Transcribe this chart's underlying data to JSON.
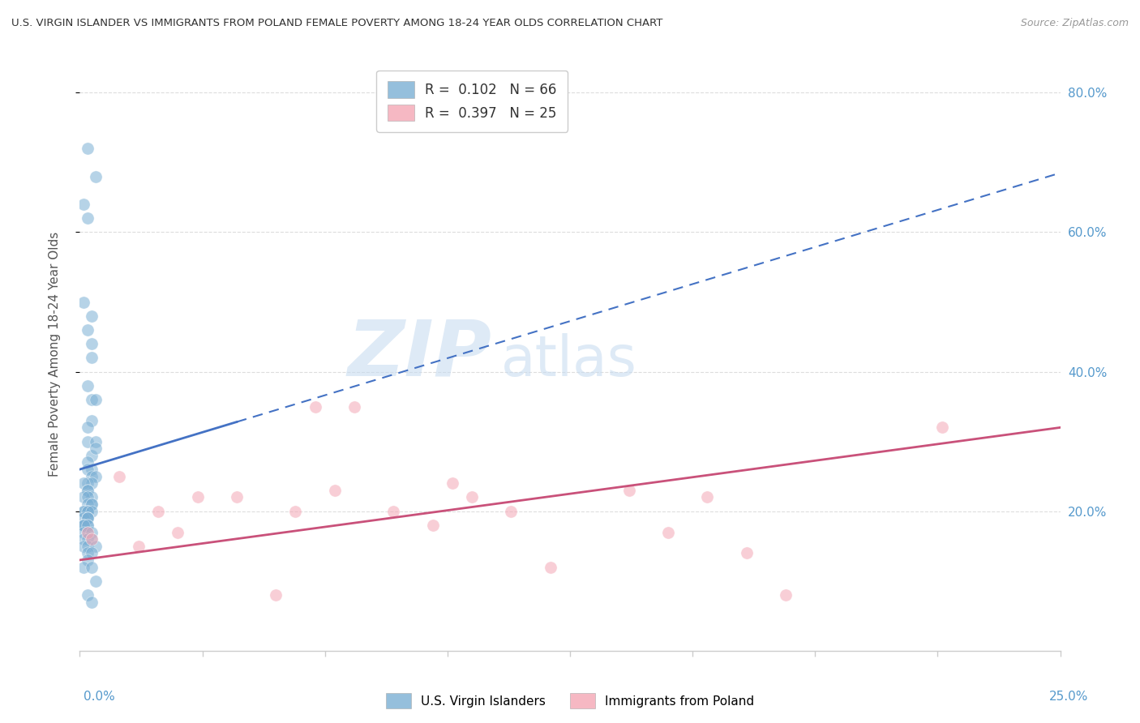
{
  "title": "U.S. VIRGIN ISLANDER VS IMMIGRANTS FROM POLAND FEMALE POVERTY AMONG 18-24 YEAR OLDS CORRELATION CHART",
  "source": "Source: ZipAtlas.com",
  "ylabel": "Female Poverty Among 18-24 Year Olds",
  "xlim": [
    0.0,
    0.25
  ],
  "ylim": [
    0.0,
    0.85
  ],
  "right_yticks": [
    0.2,
    0.4,
    0.6,
    0.8
  ],
  "right_yticklabels": [
    "20.0%",
    "40.0%",
    "60.0%",
    "80.0%"
  ],
  "blue_color": "#7BAFD4",
  "pink_color": "#F4A7B5",
  "blue_line_color": "#4472C4",
  "pink_line_color": "#C9517A",
  "scatter_size": 120,
  "blue_scatter_alpha": 0.55,
  "pink_scatter_alpha": 0.55,
  "blue_x": [
    0.002,
    0.004,
    0.001,
    0.002,
    0.001,
    0.003,
    0.002,
    0.003,
    0.003,
    0.002,
    0.003,
    0.004,
    0.003,
    0.002,
    0.002,
    0.004,
    0.003,
    0.002,
    0.003,
    0.002,
    0.003,
    0.004,
    0.002,
    0.003,
    0.004,
    0.001,
    0.002,
    0.002,
    0.003,
    0.001,
    0.002,
    0.003,
    0.002,
    0.003,
    0.002,
    0.001,
    0.002,
    0.001,
    0.002,
    0.003,
    0.002,
    0.001,
    0.002,
    0.002,
    0.001,
    0.002,
    0.001,
    0.001,
    0.002,
    0.001,
    0.002,
    0.003,
    0.001,
    0.002,
    0.003,
    0.001,
    0.002,
    0.004,
    0.002,
    0.003,
    0.002,
    0.001,
    0.003,
    0.004,
    0.002,
    0.003
  ],
  "blue_y": [
    0.72,
    0.68,
    0.64,
    0.62,
    0.5,
    0.48,
    0.46,
    0.44,
    0.42,
    0.38,
    0.36,
    0.36,
    0.33,
    0.32,
    0.3,
    0.3,
    0.28,
    0.27,
    0.26,
    0.26,
    0.25,
    0.25,
    0.24,
    0.24,
    0.29,
    0.24,
    0.23,
    0.23,
    0.22,
    0.22,
    0.22,
    0.21,
    0.21,
    0.21,
    0.2,
    0.2,
    0.2,
    0.2,
    0.2,
    0.2,
    0.19,
    0.19,
    0.19,
    0.19,
    0.18,
    0.18,
    0.18,
    0.18,
    0.18,
    0.17,
    0.17,
    0.17,
    0.16,
    0.16,
    0.16,
    0.15,
    0.15,
    0.15,
    0.14,
    0.14,
    0.13,
    0.12,
    0.12,
    0.1,
    0.08,
    0.07
  ],
  "pink_x": [
    0.002,
    0.003,
    0.01,
    0.015,
    0.02,
    0.025,
    0.03,
    0.04,
    0.05,
    0.055,
    0.06,
    0.065,
    0.07,
    0.08,
    0.09,
    0.095,
    0.1,
    0.11,
    0.12,
    0.14,
    0.15,
    0.16,
    0.17,
    0.18,
    0.22
  ],
  "pink_y": [
    0.17,
    0.16,
    0.25,
    0.15,
    0.2,
    0.17,
    0.22,
    0.22,
    0.08,
    0.2,
    0.35,
    0.23,
    0.35,
    0.2,
    0.18,
    0.24,
    0.22,
    0.2,
    0.12,
    0.23,
    0.17,
    0.22,
    0.14,
    0.08,
    0.32
  ],
  "blue_trend_x0": 0.0,
  "blue_trend_x_solid_end": 0.04,
  "blue_trend_x1": 0.25,
  "blue_trend_y0": 0.26,
  "blue_trend_y1": 0.685,
  "pink_trend_x0": 0.0,
  "pink_trend_x1": 0.25,
  "pink_trend_y0": 0.13,
  "pink_trend_y1": 0.32,
  "watermark_zip": "ZIP",
  "watermark_atlas": "atlas",
  "watermark_color_zip": "#C8DCF0",
  "watermark_color_atlas": "#C8DCF0",
  "background_color": "#FFFFFF",
  "grid_color": "#DDDDDD",
  "axis_color": "#CCCCCC",
  "label_color": "#555555",
  "right_axis_color": "#5599CC",
  "bottom_label_color": "#5599CC"
}
